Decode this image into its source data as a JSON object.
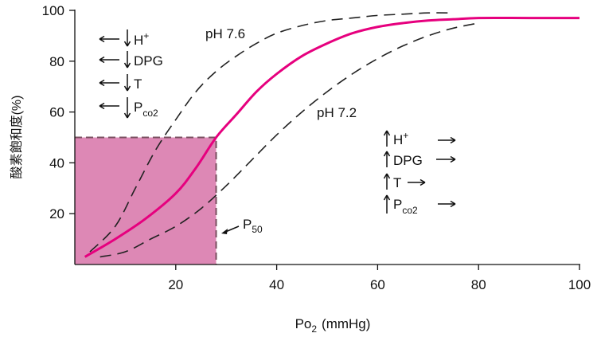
{
  "chart_data": {
    "type": "line",
    "xlabel": "Po₂ (mmHg)",
    "xlabel_main": "Po",
    "xlabel_sub": "2",
    "xlabel_unit": "(mmHg)",
    "ylabel": "酸素飽和度(%)",
    "xlim": [
      0,
      100
    ],
    "ylim": [
      0,
      100
    ],
    "x_ticks": [
      20,
      40,
      60,
      80,
      100
    ],
    "y_ticks": [
      20,
      40,
      60,
      80,
      100
    ],
    "grid": false,
    "series": [
      {
        "name": "pH 7.6",
        "style": "dashed",
        "color": "#222222",
        "x": [
          3,
          8,
          12,
          16,
          20,
          24,
          28,
          32,
          36,
          40,
          45,
          50,
          55,
          60,
          65,
          70,
          75
        ],
        "y": [
          5,
          15,
          30,
          45,
          57,
          68,
          76,
          82,
          87,
          91,
          94,
          96,
          97,
          98,
          98.5,
          99,
          99
        ]
      },
      {
        "name": "",
        "style": "solid",
        "color": "#e6007e",
        "x": [
          2,
          8,
          14,
          20,
          24,
          28,
          32,
          36,
          40,
          45,
          50,
          55,
          60,
          65,
          70,
          75,
          80,
          90,
          100
        ],
        "y": [
          3,
          10,
          18,
          28,
          38,
          50,
          59,
          68,
          75,
          82,
          87,
          91,
          93.5,
          95,
          96,
          96.5,
          97,
          97,
          97
        ]
      },
      {
        "name": "pH 7.2",
        "style": "dashed",
        "color": "#222222",
        "x": [
          5,
          10,
          15,
          20,
          25,
          30,
          35,
          40,
          45,
          50,
          55,
          60,
          65,
          70,
          75,
          80
        ],
        "y": [
          3,
          5,
          10,
          15,
          22,
          31,
          41,
          51,
          60,
          68,
          75,
          81,
          86,
          90,
          93,
          95
        ]
      }
    ],
    "p50": {
      "x": 28,
      "y": 50,
      "label_main": "P",
      "label_sub": "50"
    },
    "annotations": {
      "left_set": [
        {
          "main": "H",
          "sup": "+",
          "sub": ""
        },
        {
          "main": "DPG",
          "sup": "",
          "sub": ""
        },
        {
          "main": "T",
          "sup": "",
          "sub": ""
        },
        {
          "main": "P",
          "sup": "",
          "sub": "co2"
        }
      ],
      "right_set": [
        {
          "main": "H",
          "sup": "+",
          "sub": ""
        },
        {
          "main": "DPG",
          "sup": "",
          "sub": ""
        },
        {
          "main": "T",
          "sup": "",
          "sub": ""
        },
        {
          "main": "P",
          "sup": "",
          "sub": "co2"
        }
      ]
    },
    "colors": {
      "curve": "#e6007e",
      "fill": "#dd88b5",
      "fill_border": "#7a5060",
      "axis": "#111111"
    }
  }
}
